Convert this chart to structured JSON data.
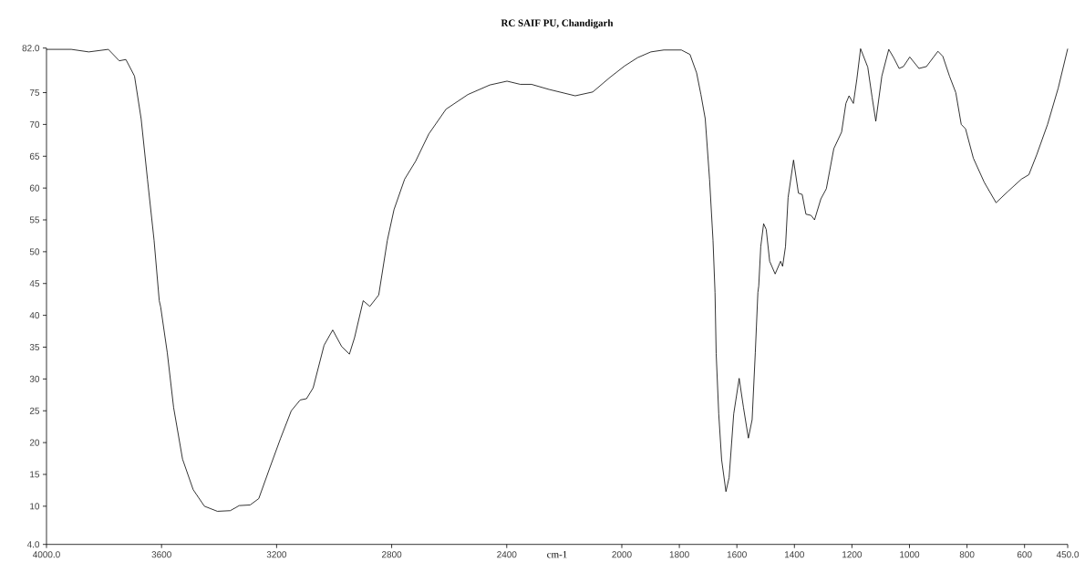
{
  "chart_data": {
    "type": "line",
    "title": "RC SAIF PU, Chandigarh",
    "xlabel": "cm-1",
    "xlim": [
      4000,
      450
    ],
    "xticks": [
      {
        "value": 4000,
        "label": "4000.0"
      },
      3600,
      3200,
      2800,
      2400,
      2000,
      1800,
      1600,
      1400,
      1200,
      1000,
      800,
      600,
      {
        "value": 450,
        "label": "450.0"
      }
    ],
    "ylim": [
      4,
      82
    ],
    "yticks": [
      {
        "value": 4,
        "label": "4.0"
      },
      10,
      15,
      20,
      25,
      30,
      35,
      40,
      45,
      50,
      55,
      60,
      65,
      70,
      75,
      {
        "value": 82,
        "label": "82.0"
      }
    ],
    "series": [
      {
        "color": "#000000",
        "x": [
          4000,
          3914,
          3853,
          3785,
          3747,
          3724,
          3694,
          3671,
          3649,
          3626,
          3608,
          3603,
          3580,
          3558,
          3527,
          3490,
          3451,
          3406,
          3361,
          3330,
          3292,
          3262,
          3224,
          3186,
          3149,
          3118,
          3096,
          3073,
          3035,
          3005,
          2974,
          2947,
          2929,
          2899,
          2876,
          2845,
          2815,
          2792,
          2755,
          2717,
          2671,
          2611,
          2535,
          2459,
          2399,
          2353,
          2314,
          2253,
          2162,
          2101,
          2041,
          1990,
          1945,
          1899,
          1854,
          1793,
          1763,
          1740,
          1725,
          1710,
          1695,
          1683,
          1676,
          1672,
          1663,
          1653,
          1638,
          1627,
          1611,
          1592,
          1577,
          1560,
          1547,
          1536,
          1527,
          1524,
          1517,
          1507,
          1498,
          1486,
          1467,
          1448,
          1441,
          1431,
          1422,
          1403,
          1386,
          1373,
          1360,
          1342,
          1330,
          1308,
          1289,
          1263,
          1236,
          1221,
          1210,
          1195,
          1183,
          1170,
          1145,
          1130,
          1117,
          1096,
          1072,
          1055,
          1036,
          1021,
          999,
          967,
          941,
          901,
          884,
          861,
          839,
          820,
          805,
          778,
          740,
          699,
          657,
          611,
          585,
          558,
          520,
          483,
          450
        ],
        "values": [
          81.8,
          81.8,
          81.4,
          81.8,
          80.0,
          80.2,
          77.6,
          70.9,
          61.4,
          51.8,
          42.3,
          41.3,
          34.1,
          25.5,
          17.4,
          12.6,
          10.0,
          9.2,
          9.3,
          10.1,
          10.2,
          11.2,
          16.0,
          20.7,
          25.0,
          26.7,
          26.9,
          28.6,
          35.3,
          37.7,
          35.1,
          33.9,
          36.5,
          42.3,
          41.4,
          43.2,
          51.8,
          56.6,
          61.4,
          64.2,
          68.5,
          72.4,
          74.7,
          76.2,
          76.8,
          76.3,
          76.3,
          75.5,
          74.5,
          75.1,
          77.4,
          79.2,
          80.5,
          81.4,
          81.7,
          81.7,
          81.0,
          78.1,
          74.7,
          70.9,
          61.4,
          51.8,
          43.6,
          34.0,
          24.5,
          17.3,
          12.3,
          14.5,
          24.5,
          30.1,
          25.5,
          20.7,
          23.6,
          34.1,
          43.6,
          44.6,
          50.8,
          54.4,
          53.5,
          48.5,
          46.5,
          48.5,
          47.7,
          50.8,
          58.5,
          64.4,
          59.2,
          59.0,
          55.9,
          55.7,
          55.0,
          58.3,
          59.9,
          66.2,
          68.8,
          73.3,
          74.5,
          73.3,
          77.1,
          81.9,
          79.0,
          74.3,
          70.5,
          77.6,
          81.8,
          80.5,
          78.8,
          79.1,
          80.6,
          78.8,
          79.1,
          81.5,
          80.7,
          77.6,
          75.0,
          70.0,
          69.3,
          64.7,
          60.9,
          57.7,
          59.5,
          61.4,
          62.1,
          65.2,
          70.0,
          75.7,
          81.9
        ]
      }
    ]
  }
}
